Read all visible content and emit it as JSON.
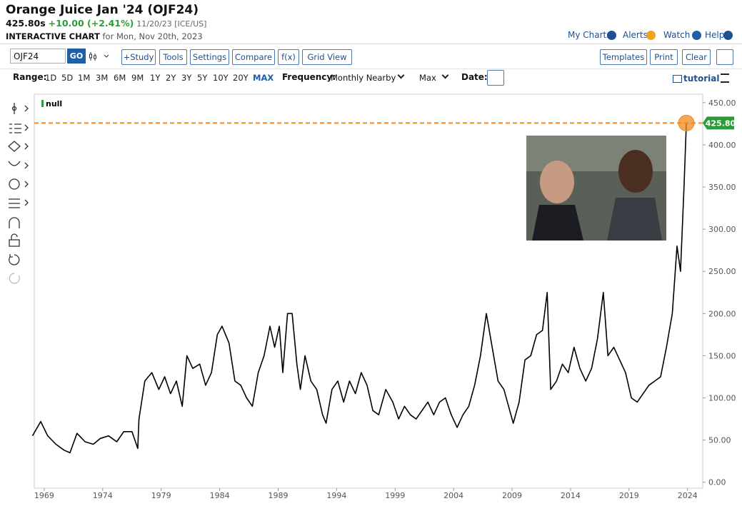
{
  "header": {
    "title": "Orange Juice Jan '24 (OJF24)",
    "price": "425.80s",
    "change": "+10.00 (+2.41%)",
    "quote_date": "11/20/23 [ICE/US]",
    "chart_label": "INTERACTIVE CHART",
    "chart_date": "for Mon, Nov 20th, 2023",
    "links": [
      "My Charts",
      "Alerts",
      "Watch",
      "Help"
    ]
  },
  "toolbar": {
    "symbol": "OJF24",
    "go": "GO",
    "buttons": [
      "+Study",
      "Tools",
      "Settings",
      "Compare",
      "f(x)",
      "Grid View"
    ],
    "right_buttons": [
      "Templates",
      "Print",
      "Clear"
    ]
  },
  "range_bar": {
    "range_label": "Range:",
    "ranges": [
      "1D",
      "5D",
      "1M",
      "3M",
      "6M",
      "9M",
      "1Y",
      "2Y",
      "3Y",
      "5Y",
      "10Y",
      "20Y",
      "MAX"
    ],
    "frequency_label": "Frequency:",
    "frequency": "Monthly Nearby",
    "period": "Max",
    "date_label": "Date:",
    "tutorial": "tutorial"
  },
  "chart_data": {
    "type": "line",
    "x": [
      1968.0,
      1968.7,
      1969.3,
      1970.0,
      1970.7,
      1971.2,
      1971.8,
      1972.5,
      1973.2,
      1973.8,
      1974.5,
      1975.2,
      1975.8,
      1976.5,
      1977.0,
      1977.1,
      1977.6,
      1978.2,
      1978.8,
      1979.3,
      1979.8,
      1980.3,
      1980.8,
      1981.2,
      1981.7,
      1982.3,
      1982.8,
      1983.3,
      1983.8,
      1984.2,
      1984.8,
      1985.3,
      1985.8,
      1986.3,
      1986.8,
      1987.3,
      1987.8,
      1988.3,
      1988.7,
      1989.1,
      1989.4,
      1989.8,
      1990.2,
      1990.6,
      1990.9,
      1991.3,
      1991.8,
      1992.3,
      1992.8,
      1993.1,
      1993.6,
      1994.1,
      1994.6,
      1995.1,
      1995.6,
      1996.1,
      1996.6,
      1997.1,
      1997.6,
      1998.2,
      1998.8,
      1999.3,
      1999.8,
      2000.3,
      2000.8,
      2001.3,
      2001.8,
      2002.3,
      2002.8,
      2003.3,
      2003.8,
      2004.3,
      2004.8,
      2005.3,
      2005.8,
      2006.3,
      2006.8,
      2007.3,
      2007.8,
      2008.3,
      2008.8,
      2009.1,
      2009.6,
      2010.1,
      2010.6,
      2011.1,
      2011.6,
      2012.0,
      2012.3,
      2012.8,
      2013.3,
      2013.8,
      2014.3,
      2014.8,
      2015.3,
      2015.8,
      2016.3,
      2016.8,
      2017.2,
      2017.7,
      2018.2,
      2018.7,
      2019.2,
      2019.7,
      2020.2,
      2020.7,
      2021.2,
      2021.7,
      2022.2,
      2022.7,
      2023.1,
      2023.4,
      2023.7,
      2023.9
    ],
    "series": [
      {
        "name": "null",
        "color": "#000000",
        "legend_color": "#2e9b3a",
        "values": [
          55,
          72,
          55,
          45,
          38,
          35,
          58,
          48,
          45,
          52,
          55,
          48,
          60,
          60,
          40,
          75,
          120,
          130,
          110,
          125,
          105,
          120,
          90,
          150,
          135,
          140,
          115,
          130,
          175,
          185,
          165,
          120,
          115,
          100,
          90,
          130,
          150,
          185,
          160,
          185,
          130,
          200,
          200,
          140,
          110,
          150,
          120,
          110,
          80,
          70,
          110,
          120,
          95,
          120,
          105,
          130,
          115,
          85,
          80,
          110,
          95,
          75,
          90,
          80,
          75,
          85,
          95,
          80,
          95,
          100,
          80,
          65,
          80,
          90,
          115,
          150,
          200,
          160,
          120,
          110,
          85,
          70,
          95,
          145,
          150,
          175,
          180,
          225,
          110,
          120,
          140,
          130,
          160,
          135,
          120,
          135,
          170,
          225,
          150,
          160,
          145,
          130,
          100,
          95,
          105,
          115,
          120,
          125,
          160,
          200,
          280,
          250,
          350,
          425.8
        ]
      }
    ],
    "xlim": [
      1968.15,
      2025.3
    ],
    "xticks": [
      1969,
      1974,
      1979,
      1984,
      1989,
      1994,
      1999,
      2004,
      2009,
      2014,
      2019,
      2024
    ],
    "ylim": [
      -7,
      460
    ],
    "yticks": [
      {
        "value": 0,
        "label": "0.00"
      },
      {
        "value": 50,
        "label": "50.00"
      },
      {
        "value": 100,
        "label": "100.00"
      },
      {
        "value": 150,
        "label": "150.00"
      },
      {
        "value": 200,
        "label": "200.00"
      },
      {
        "value": 250,
        "label": "250.00"
      },
      {
        "value": 300,
        "label": "300.00"
      },
      {
        "value": 350,
        "label": "350.00"
      },
      {
        "value": 400,
        "label": "400.00"
      },
      {
        "value": 450,
        "label": "450.00"
      }
    ],
    "price_line": {
      "value": 425.8,
      "label": "425.80",
      "color": "#f28a1f",
      "label_color": "#2e9b3a"
    }
  }
}
